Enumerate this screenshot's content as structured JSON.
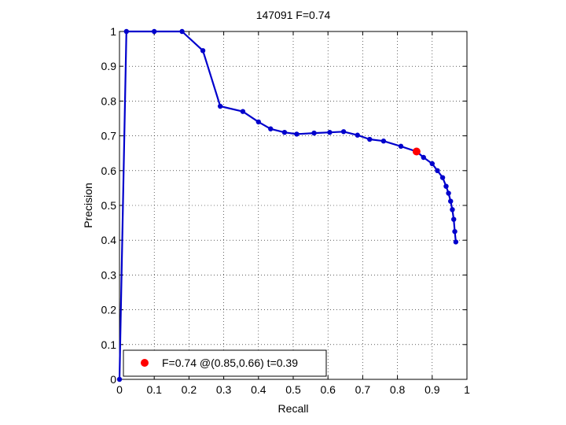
{
  "chart_data": {
    "type": "line",
    "title": "147091 F=0.74",
    "xlabel": "Recall",
    "ylabel": "Precision",
    "xlim": [
      0,
      1
    ],
    "ylim": [
      0,
      1
    ],
    "xticks": [
      0,
      0.1,
      0.2,
      0.3,
      0.4,
      0.5,
      0.6,
      0.7,
      0.8,
      0.9,
      1
    ],
    "xtick_labels": [
      "0",
      "0.1",
      "0.2",
      "0.3",
      "0.4",
      "0.5",
      "0.6",
      "0.7",
      "0.8",
      "0.9",
      "1"
    ],
    "yticks": [
      0,
      0.1,
      0.2,
      0.3,
      0.4,
      0.5,
      0.6,
      0.7,
      0.8,
      0.9,
      1
    ],
    "ytick_labels": [
      "0",
      "0.1",
      "0.2",
      "0.3",
      "0.4",
      "0.5",
      "0.6",
      "0.7",
      "0.8",
      "0.9",
      "1"
    ],
    "grid": true,
    "grid_style": "dotted",
    "legend_position": "bottom-left",
    "series": [
      {
        "color": "#0000cc",
        "marker": "dot",
        "points": [
          [
            0.0,
            0.0
          ],
          [
            0.02,
            1.0
          ],
          [
            0.1,
            1.0
          ],
          [
            0.18,
            1.0
          ],
          [
            0.24,
            0.945
          ],
          [
            0.29,
            0.785
          ],
          [
            0.355,
            0.77
          ],
          [
            0.4,
            0.74
          ],
          [
            0.435,
            0.72
          ],
          [
            0.475,
            0.71
          ],
          [
            0.51,
            0.705
          ],
          [
            0.56,
            0.708
          ],
          [
            0.605,
            0.71
          ],
          [
            0.645,
            0.712
          ],
          [
            0.685,
            0.702
          ],
          [
            0.72,
            0.69
          ],
          [
            0.76,
            0.685
          ],
          [
            0.81,
            0.67
          ],
          [
            0.855,
            0.655
          ],
          [
            0.875,
            0.638
          ],
          [
            0.9,
            0.62
          ],
          [
            0.915,
            0.6
          ],
          [
            0.93,
            0.58
          ],
          [
            0.94,
            0.555
          ],
          [
            0.947,
            0.535
          ],
          [
            0.953,
            0.512
          ],
          [
            0.958,
            0.488
          ],
          [
            0.962,
            0.46
          ],
          [
            0.965,
            0.425
          ],
          [
            0.968,
            0.395
          ]
        ]
      }
    ],
    "highlight": {
      "color": "#ff0000",
      "recall": 0.855,
      "precision": 0.655
    },
    "legend": {
      "label": "F=0.74 @(0.85,0.66) t=0.39",
      "marker_color": "#ff0000"
    }
  }
}
